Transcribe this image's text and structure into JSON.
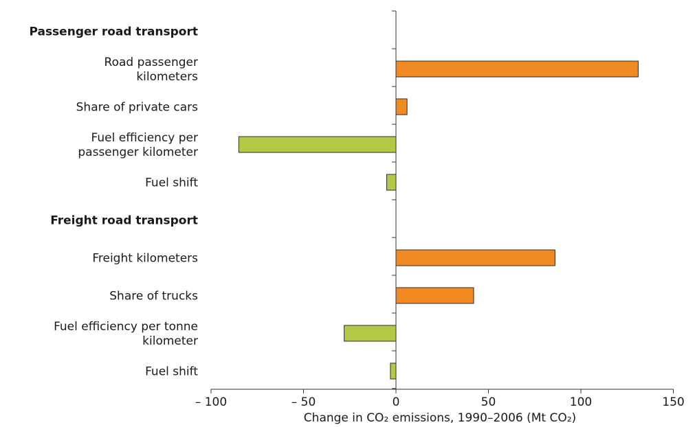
{
  "chart_data": {
    "type": "bar",
    "orientation": "horizontal",
    "title": "",
    "xlabel": "Change in CO₂ emissions, 1990–2006 (Mt CO₂)",
    "xlim": [
      -100,
      150
    ],
    "xticks": [
      -100,
      -50,
      0,
      50,
      100,
      150
    ],
    "xtick_labels": [
      "– 100",
      "– 50",
      "0",
      "50",
      "100",
      "150"
    ],
    "grid": false,
    "colors": {
      "positive": "#f28a24",
      "negative": "#b2c846",
      "outline": "#2b2b2b"
    },
    "rows": [
      {
        "label": "Passenger road transport",
        "kind": "group"
      },
      {
        "label": "Road passenger\nkilometers",
        "kind": "bar",
        "value": 131
      },
      {
        "label": "Share of private cars",
        "kind": "bar",
        "value": 6
      },
      {
        "label": "Fuel efficiency per\npassenger kilometer",
        "kind": "bar",
        "value": -85
      },
      {
        "label": "Fuel shift",
        "kind": "bar",
        "value": -5
      },
      {
        "label": "Freight road transport",
        "kind": "group"
      },
      {
        "label": "Freight kilometers",
        "kind": "bar",
        "value": 86
      },
      {
        "label": "Share of trucks",
        "kind": "bar",
        "value": 42
      },
      {
        "label": "Fuel efficiency per tonne\nkilometer",
        "kind": "bar",
        "value": -28
      },
      {
        "label": "Fuel shift",
        "kind": "bar",
        "value": -3
      }
    ]
  }
}
